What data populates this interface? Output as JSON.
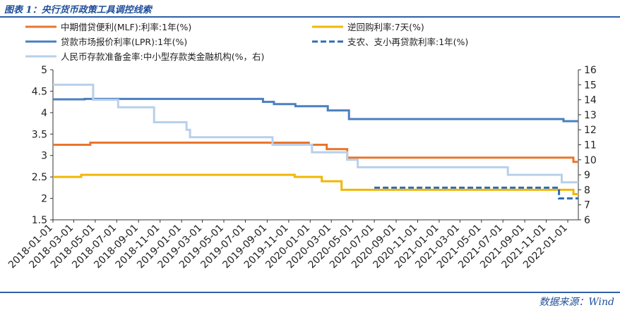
{
  "header": {
    "title": "图表 1：央行货币政策工具调控线索"
  },
  "footer": {
    "source": "数据来源：Wind"
  },
  "colors": {
    "mlf": "#e8762d",
    "repo": "#f2b705",
    "lpr": "#4a7fc1",
    "relending": "#2e6db4",
    "rrr": "#b8d0ea",
    "frame": "#2e5fa8"
  },
  "chart_data": {
    "type": "line",
    "x_ticks": [
      "2018-01-01",
      "2018-03-01",
      "2018-05-01",
      "2018-07-01",
      "2018-09-01",
      "2018-11-01",
      "2019-01-01",
      "2019-03-01",
      "2019-05-01",
      "2019-07-01",
      "2019-09-01",
      "2019-11-01",
      "2020-01-01",
      "2020-03-01",
      "2020-05-01",
      "2020-07-01",
      "2020-09-01",
      "2020-11-01",
      "2021-01-01",
      "2021-03-01",
      "2021-05-01",
      "2021-07-01",
      "2021-09-01",
      "2021-11-01",
      "2022-01-01"
    ],
    "x_range": [
      "2018-01-01",
      "2022-01-31"
    ],
    "y_left": {
      "min": 1.5,
      "max": 5,
      "ticks": [
        "1.5",
        "2",
        "2.5",
        "3",
        "3.5",
        "4",
        "4.5",
        "5"
      ]
    },
    "y_right": {
      "min": 6,
      "max": 16,
      "ticks": [
        "6",
        "7",
        "8",
        "9",
        "10",
        "11",
        "12",
        "13",
        "14",
        "15",
        "16"
      ]
    },
    "grid": false,
    "legend": "top",
    "series": [
      {
        "name": "中期借贷便利(MLF):利率:1年(%)",
        "axis": "left",
        "color": "#e8762d",
        "style": "solid",
        "points": [
          [
            "2018-01-01",
            3.25
          ],
          [
            "2018-04-17",
            3.3
          ],
          [
            "2019-12-31",
            3.3
          ]
        ]
      },
      {
        "name": "中期借贷便利(MLF):利率:1年(%)",
        "axis": "left",
        "color": "#e8762d",
        "style": "solid",
        "legend": false,
        "points": [
          [
            "2019-11-05",
            3.25
          ],
          [
            "2020-02-17",
            3.15
          ],
          [
            "2020-04-15",
            2.95
          ],
          [
            "2022-01-17",
            2.85
          ],
          [
            "2022-01-31",
            2.85
          ]
        ]
      },
      {
        "name": "逆回购利率:7天(%)",
        "axis": "left",
        "color": "#f2b705",
        "style": "solid",
        "points": [
          [
            "2018-01-01",
            2.5
          ],
          [
            "2018-03-22",
            2.55
          ],
          [
            "2019-11-18",
            2.5
          ],
          [
            "2020-02-03",
            2.4
          ],
          [
            "2020-03-30",
            2.2
          ],
          [
            "2022-01-17",
            2.1
          ],
          [
            "2022-01-31",
            2.1
          ]
        ]
      },
      {
        "name": "贷款市场报价利率(LPR):1年(%)",
        "axis": "left",
        "color": "#4a7fc1",
        "style": "solid",
        "points": [
          [
            "2018-01-01",
            4.31
          ],
          [
            "2018-04-01",
            4.32
          ],
          [
            "2019-08-20",
            4.25
          ],
          [
            "2019-09-20",
            4.2
          ],
          [
            "2019-11-20",
            4.15
          ],
          [
            "2020-02-20",
            4.05
          ],
          [
            "2020-04-20",
            3.85
          ],
          [
            "2021-12-20",
            3.8
          ],
          [
            "2022-01-31",
            3.8
          ]
        ]
      },
      {
        "name": "支农、支小再贷款利率:1年(%)",
        "axis": "left",
        "color": "#2e6db4",
        "style": "dashed",
        "points": [
          [
            "2020-07-01",
            2.25
          ],
          [
            "2021-12-07",
            2.0
          ],
          [
            "2022-01-31",
            2.0
          ]
        ]
      },
      {
        "name": "人民币存款准备金率:中小型存款类金融机构(%，右)",
        "axis": "right",
        "color": "#b8d0ea",
        "style": "solid",
        "points": [
          [
            "2018-01-01",
            15.0
          ],
          [
            "2018-04-25",
            14.0
          ],
          [
            "2018-07-05",
            13.5
          ],
          [
            "2018-10-15",
            12.5
          ],
          [
            "2019-01-15",
            12.0
          ],
          [
            "2019-01-25",
            11.5
          ],
          [
            "2019-09-16",
            11.0
          ],
          [
            "2020-01-06",
            10.5
          ],
          [
            "2020-04-15",
            10.0
          ],
          [
            "2020-05-15",
            9.5
          ],
          [
            "2021-07-15",
            9.0
          ],
          [
            "2021-12-15",
            8.5
          ],
          [
            "2022-01-31",
            8.5
          ]
        ]
      }
    ]
  }
}
